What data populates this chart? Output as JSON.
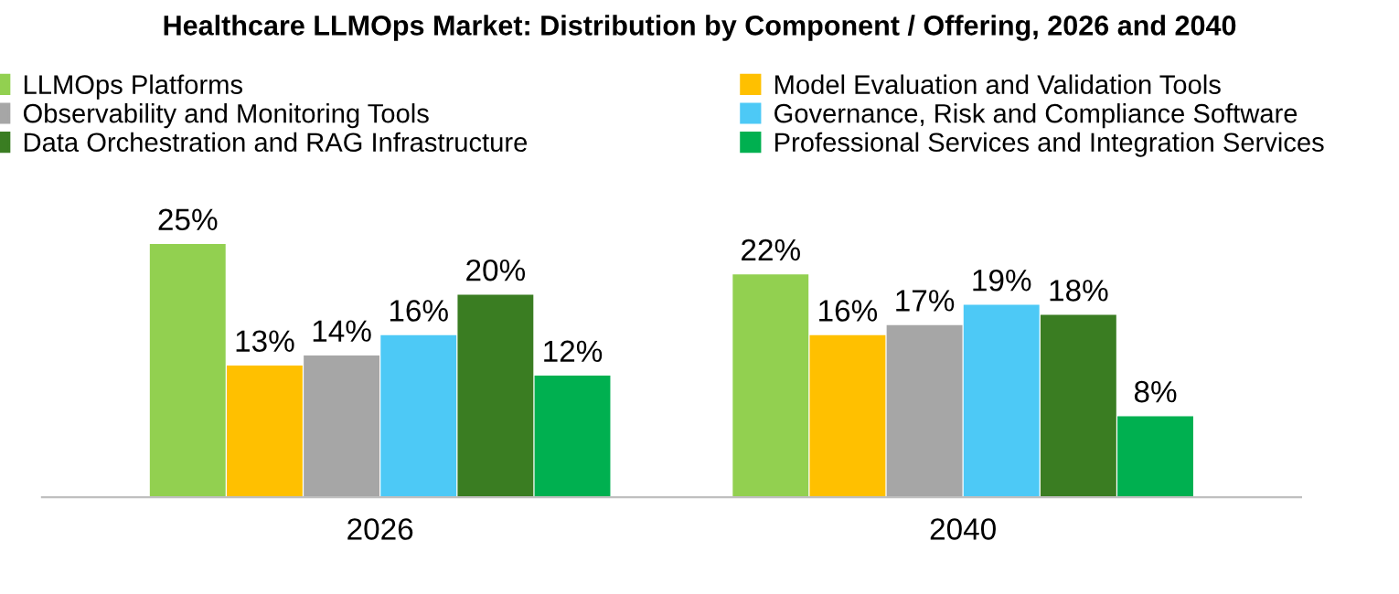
{
  "chart_data": {
    "type": "bar",
    "title": "Healthcare LLMOps Market: Distribution by Component / Offering, 2026 and 2040",
    "categories": [
      "2026",
      "2040"
    ],
    "series": [
      {
        "name": "LLMOps Platforms",
        "color": "#92d050",
        "values": [
          25,
          22
        ],
        "value_labels": [
          "25%",
          "22%"
        ]
      },
      {
        "name": "Model Evaluation and Validation Tools",
        "color": "#ffc000",
        "values": [
          13,
          16
        ],
        "value_labels": [
          "13%",
          "16%"
        ]
      },
      {
        "name": "Observability and Monitoring Tools",
        "color": "#a6a6a6",
        "values": [
          14,
          17
        ],
        "value_labels": [
          "14%",
          "17%"
        ]
      },
      {
        "name": "Governance, Risk and Compliance Software",
        "color": "#4dc9f6",
        "values": [
          16,
          19
        ],
        "value_labels": [
          "16%",
          "19%"
        ]
      },
      {
        "name": "Data Orchestration and RAG Infrastructure",
        "color": "#3a7d22",
        "values": [
          20,
          18
        ],
        "value_labels": [
          "20%",
          "18%"
        ]
      },
      {
        "name": "Professional Services and Integration Services",
        "color": "#00b050",
        "values": [
          12,
          8
        ],
        "value_labels": [
          "12%",
          "8%"
        ]
      }
    ],
    "legend": "top",
    "grid": false
  }
}
